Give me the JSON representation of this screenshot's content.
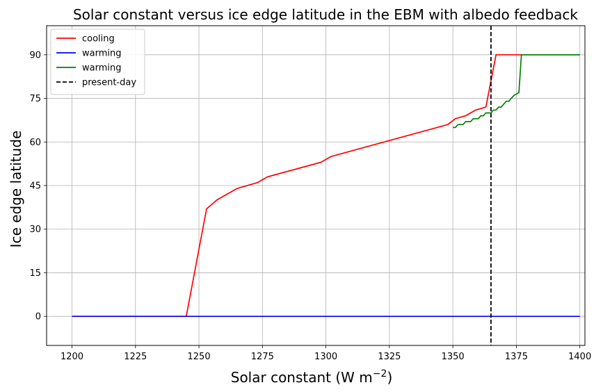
{
  "chart_data": {
    "type": "line",
    "title": "Solar constant versus ice edge latitude in the EBM with albedo feedback",
    "xlabel": "Solar constant (W m",
    "xlabel_sup": "−2",
    "xlabel_close": ")",
    "ylabel": "Ice edge latitude",
    "xlim": [
      1190,
      1402
    ],
    "ylim": [
      -10,
      100
    ],
    "xticks": [
      1200,
      1225,
      1250,
      1275,
      1300,
      1325,
      1350,
      1375,
      1400
    ],
    "yticks": [
      0,
      15,
      30,
      45,
      60,
      75,
      90
    ],
    "grid": true,
    "legend_position": "top-left",
    "present_day_x": 1365,
    "series": [
      {
        "name": "cooling",
        "color": "#ff0000",
        "style": "solid",
        "x": [
          1200,
          1245,
          1253,
          1257,
          1265,
          1273,
          1277,
          1298,
          1302,
          1348,
          1351,
          1355,
          1359,
          1363,
          1367,
          1400
        ],
        "y": [
          0,
          0,
          37,
          40,
          44,
          46,
          48,
          53,
          55,
          66,
          68,
          69,
          71,
          72,
          90,
          90
        ]
      },
      {
        "name": "warming",
        "color": "#0000ff",
        "style": "solid",
        "x": [
          1200,
          1400
        ],
        "y": [
          0,
          0
        ]
      },
      {
        "name": "warming",
        "color": "#008000",
        "style": "solid",
        "x": [
          1350,
          1351,
          1352,
          1353,
          1354,
          1355,
          1356,
          1357,
          1358,
          1359,
          1360,
          1361,
          1362,
          1363,
          1364,
          1365,
          1366,
          1367,
          1368,
          1369,
          1370,
          1371,
          1372,
          1373,
          1374,
          1375,
          1376,
          1377,
          1400
        ],
        "y": [
          65,
          65,
          66,
          66,
          66,
          67,
          67,
          67,
          68,
          68,
          68,
          69,
          69,
          70,
          70,
          70,
          71,
          71,
          72,
          72,
          73,
          74,
          74,
          75,
          76,
          76.5,
          77,
          90,
          90
        ]
      },
      {
        "name": "present-day",
        "color": "#000000",
        "style": "dashed"
      }
    ]
  }
}
